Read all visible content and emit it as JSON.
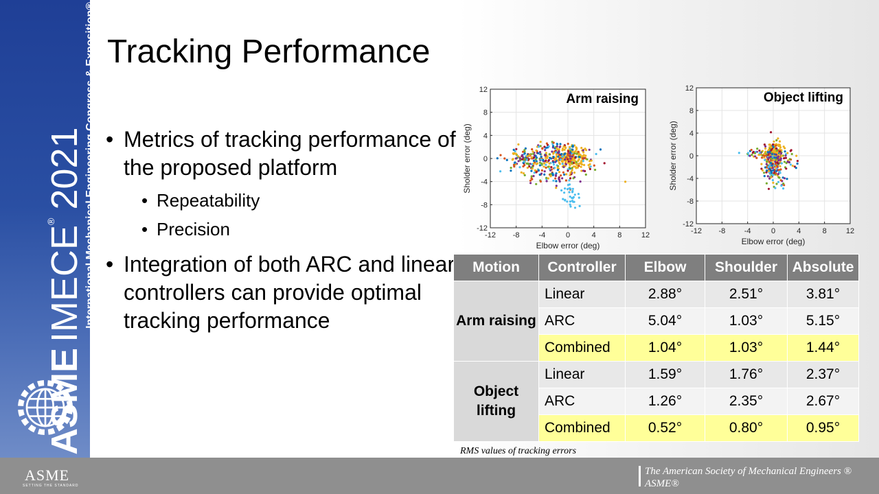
{
  "slide": {
    "title": "Tracking Performance",
    "bullets": [
      {
        "text": "Metrics of tracking performance of the proposed platform",
        "sub": [
          "Repeatability",
          "Precision"
        ]
      },
      {
        "text": "Integration of both ARC and linear controllers can provide optimal tracking performance",
        "sub": []
      }
    ]
  },
  "branding": {
    "vertical_asme": "ASME",
    "vertical_imece": "IMECE",
    "vertical_reg": "®",
    "vertical_year": "2021",
    "vertical_subtitle": "International Mechanical Engineering Congress & Exposition®",
    "footer_logo": "ASME",
    "footer_logo_sub": "SETTING THE STANDARD",
    "footer_line1": "The American Society of Mechanical Engineers ®",
    "footer_line2": "ASME®",
    "colors": {
      "sidebar": "#1f3f96",
      "footer": "#8f8f8f",
      "table_header": "#7f7f7f",
      "highlight": "#ffff99"
    }
  },
  "chart_data": [
    {
      "type": "scatter",
      "title": "Arm raising",
      "xlabel": "Elbow error (deg)",
      "ylabel": "Sholder error (deg)",
      "xlim": [
        -12,
        12
      ],
      "ylim": [
        -12,
        12
      ],
      "xticks": [
        "-12",
        "-8",
        "-4",
        "0",
        "4",
        "8",
        "12"
      ],
      "yticks": [
        "12",
        "8",
        "4",
        "0",
        "-4",
        "-8",
        "-12"
      ],
      "grid": true,
      "series_colors": [
        "#0072bd",
        "#d95319",
        "#edb120",
        "#7e2f8e",
        "#77ac30",
        "#4dbeee",
        "#a2142f"
      ],
      "clusters": [
        {
          "cx": 0.5,
          "cy": 0.3,
          "sx": 1.1,
          "sy": 0.9,
          "n": 180,
          "color": "#edb120"
        },
        {
          "cx": -1.5,
          "cy": 0.0,
          "sx": 2.4,
          "sy": 1.6,
          "n": 220,
          "color": "mixed"
        },
        {
          "cx": -6.5,
          "cy": 0.2,
          "sx": 2.0,
          "sy": 0.8,
          "n": 120,
          "color": "mixed"
        },
        {
          "cx": -3.0,
          "cy": -3.0,
          "sx": 2.5,
          "sy": 1.0,
          "n": 60,
          "color": "mixed"
        },
        {
          "cx": 0.5,
          "cy": -6.5,
          "sx": 0.7,
          "sy": 1.3,
          "n": 30,
          "color": "#4dbeee"
        }
      ]
    },
    {
      "type": "scatter",
      "title": "Object lifting",
      "xlabel": "Elbow error (deg)",
      "ylabel": "Sholder error (deg)",
      "xlim": [
        -12,
        12
      ],
      "ylim": [
        -12,
        12
      ],
      "xticks": [
        "-12",
        "-8",
        "-4",
        "0",
        "4",
        "8",
        "12"
      ],
      "yticks": [
        "12",
        "8",
        "4",
        "0",
        "-4",
        "-8",
        "-12"
      ],
      "grid": true,
      "series_colors": [
        "#0072bd",
        "#d95319",
        "#edb120",
        "#7e2f8e",
        "#77ac30",
        "#4dbeee",
        "#a2142f"
      ],
      "clusters": [
        {
          "cx": 0.1,
          "cy": 0.6,
          "sx": 0.6,
          "sy": 0.9,
          "n": 160,
          "color": "#edb120"
        },
        {
          "cx": 0.0,
          "cy": -1.5,
          "sx": 0.8,
          "sy": 1.8,
          "n": 200,
          "color": "mixed"
        },
        {
          "cx": -1.8,
          "cy": 0.3,
          "sx": 1.1,
          "sy": 0.4,
          "n": 40,
          "color": "mixed"
        },
        {
          "cx": 2.0,
          "cy": -0.8,
          "sx": 1.0,
          "sy": 0.9,
          "n": 35,
          "color": "mixed"
        }
      ]
    },
    {
      "type": "table",
      "headers": [
        "Motion",
        "Controller",
        "Elbow",
        "Shoulder",
        "Absolute"
      ],
      "groups": [
        {
          "motion": "Arm raising",
          "rows": [
            {
              "controller": "Linear",
              "elbow": "2.88°",
              "shoulder": "2.51°",
              "absolute": "3.81°"
            },
            {
              "controller": "ARC",
              "elbow": "5.04°",
              "shoulder": "1.03°",
              "absolute": "5.15°"
            },
            {
              "controller": "Combined",
              "elbow": "1.04°",
              "shoulder": "1.03°",
              "absolute": "1.44°",
              "highlight": true
            }
          ]
        },
        {
          "motion": "Object lifting",
          "rows": [
            {
              "controller": "Linear",
              "elbow": "1.59°",
              "shoulder": "1.76°",
              "absolute": "2.37°"
            },
            {
              "controller": "ARC",
              "elbow": "1.26°",
              "shoulder": "2.35°",
              "absolute": "2.67°"
            },
            {
              "controller": "Combined",
              "elbow": "0.52°",
              "shoulder": "0.80°",
              "absolute": "0.95°",
              "highlight": true
            }
          ]
        }
      ],
      "caption": "RMS values of tracking errors"
    }
  ]
}
